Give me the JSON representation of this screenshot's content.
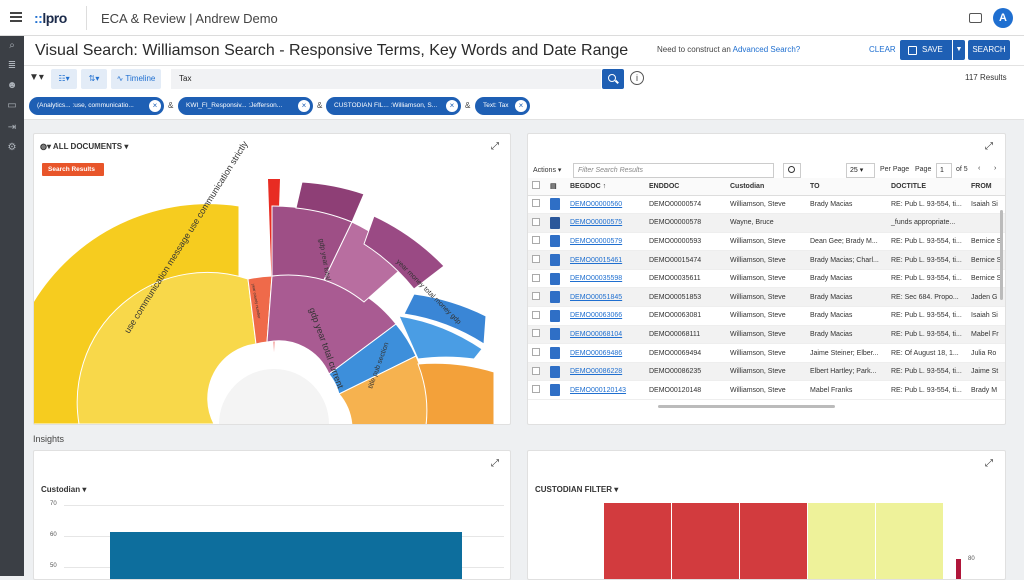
{
  "app": {
    "logo": "lpro",
    "title": "ECA & Review | Andrew Demo",
    "avatar": "A"
  },
  "header": {
    "title": "Visual Search: Williamson Search - Responsive Terms, Key Words and Date Range",
    "advanced_prefix": "Need to construct an ",
    "advanced_link": "Advanced Search?",
    "clear": "CLEAR",
    "save": "SAVE",
    "search": "SEARCH"
  },
  "toolbar": {
    "timeline": "Timeline",
    "query": "Tax",
    "results": "117 Results"
  },
  "chips": [
    {
      "label": "(Analytics... :use, communicatio..."
    },
    {
      "label": "KWI_FI_Responsiv... :Jefferson..."
    },
    {
      "label": "CUSTODIAN FIL... :Williamson, S..."
    },
    {
      "label": "Text: Tax"
    }
  ],
  "chip_joiner": "&",
  "sunburst": {
    "selector": "ALL DOCUMENTS",
    "tag": "Search Results",
    "labels": {
      "use": "use communication message use communication strictly",
      "gdp1": "gdp year total current",
      "gdp2": "gdp year total",
      "year": "year money total money gdp",
      "title": "title pub section",
      "small": "year county number"
    }
  },
  "grid": {
    "actions": "Actions",
    "filter_placeholder": "Filter Search Results",
    "per_page_value": "25",
    "per_page_label": "Per Page",
    "page_label": "Page",
    "page_value": "1",
    "of_label": "of 5",
    "columns": [
      "BEGDOC",
      "ENDDOC",
      "Custodian",
      "TO",
      "DOCTITLE",
      "FROM"
    ],
    "rows": [
      {
        "icon": "doc",
        "beg": "DEMO00000560",
        "end": "DEMO00000574",
        "cust": "Williamson, Steve",
        "to": "Brady Macias",
        "title": "RE: Pub L. 93-554, ti...",
        "from": "Isaiah Si"
      },
      {
        "icon": "word",
        "beg": "DEMO00000575",
        "end": "DEMO00000578",
        "cust": "Wayne, Bruce",
        "to": "",
        "title": "_funds appropriate...",
        "from": ""
      },
      {
        "icon": "doc",
        "beg": "DEMO00000579",
        "end": "DEMO00000593",
        "cust": "Williamson, Steve",
        "to": "Dean Gee; Brady M...",
        "title": "RE: Pub L. 93-554, ti...",
        "from": "Bernice S"
      },
      {
        "icon": "doc",
        "beg": "DEMO00015461",
        "end": "DEMO00015474",
        "cust": "Williamson, Steve",
        "to": "Brady Macias; Charl...",
        "title": "RE: Pub L. 93-554, ti...",
        "from": "Bernice S"
      },
      {
        "icon": "doc",
        "beg": "DEMO00035598",
        "end": "DEMO00035611",
        "cust": "Williamson, Steve",
        "to": "Brady Macias",
        "title": "RE: Pub L. 93-554, ti...",
        "from": "Bernice S"
      },
      {
        "icon": "doc",
        "beg": "DEMO00051845",
        "end": "DEMO00051853",
        "cust": "Williamson, Steve",
        "to": "Brady Macias",
        "title": "RE: Sec 684. Propo...",
        "from": "Jaden G"
      },
      {
        "icon": "doc",
        "beg": "DEMO00063066",
        "end": "DEMO00063081",
        "cust": "Williamson, Steve",
        "to": "Brady Macias",
        "title": "RE: Pub L. 93-554, ti...",
        "from": "Isaiah Si"
      },
      {
        "icon": "doc",
        "beg": "DEMO00068104",
        "end": "DEMO00068111",
        "cust": "Williamson, Steve",
        "to": "Brady Macias",
        "title": "RE: Pub L. 93-554, ti...",
        "from": "Mabel Fr"
      },
      {
        "icon": "doc",
        "beg": "DEMO00069486",
        "end": "DEMO00069494",
        "cust": "Williamson, Steve",
        "to": "Jaime Steiner; Elber...",
        "title": "RE: Of August 18, 1...",
        "from": "Julia Ro"
      },
      {
        "icon": "doc",
        "beg": "DEMO00086228",
        "end": "DEMO00086235",
        "cust": "Williamson, Steve",
        "to": "Elbert Hartley; Park...",
        "title": "RE: Pub L. 93-554, ti...",
        "from": "Jaime St"
      },
      {
        "icon": "doc",
        "beg": "DEMO000120143",
        "end": "DEMO00120148",
        "cust": "Williamson, Steve",
        "to": "Mabel Franks",
        "title": "RE: Pub L. 93-554, ti...",
        "from": "Brady M"
      }
    ]
  },
  "insights": {
    "title": "Insights",
    "custodian_dropdown": "Custodian",
    "custodian_filter": "CUSTODIAN FILTER",
    "y_ticks": [
      "70",
      "60",
      "50"
    ],
    "heat_label": "80"
  },
  "colors": {
    "accent": "#1e5fb4",
    "yellow": "#f6cc1f",
    "purple": "#9e4f86",
    "blue": "#3d8fdb",
    "orange": "#f3a13a",
    "red": "#e8552a",
    "heat_red": "#d23b3e",
    "heat_yellow": "#eef29a"
  }
}
